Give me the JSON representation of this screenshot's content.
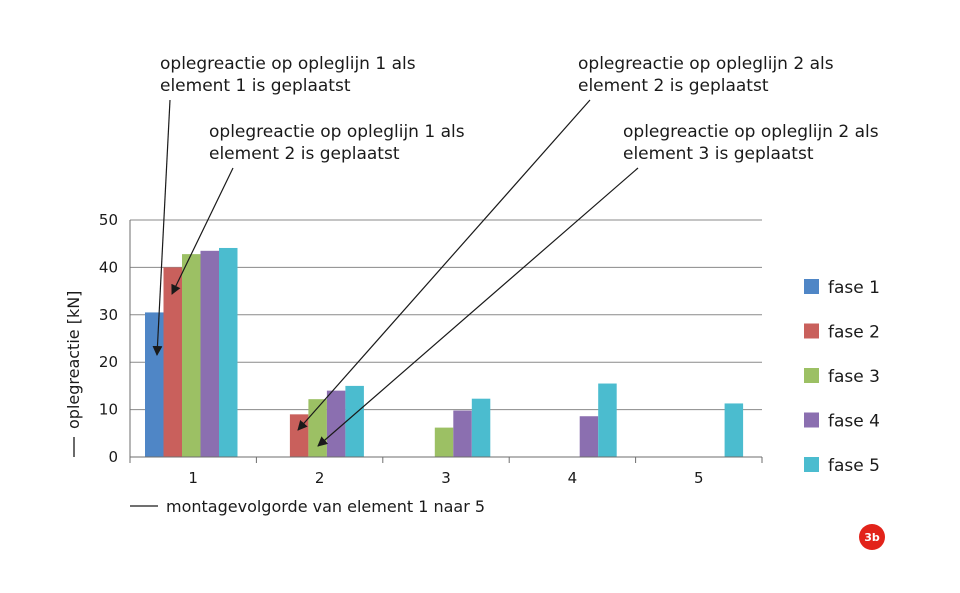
{
  "chart_data": {
    "type": "bar",
    "categories": [
      "1",
      "2",
      "3",
      "4",
      "5"
    ],
    "series": [
      {
        "name": "fase 1",
        "color": "#4f86c6",
        "values": [
          30.5,
          null,
          null,
          null,
          null
        ]
      },
      {
        "name": "fase 2",
        "color": "#c9605c",
        "values": [
          40,
          9,
          null,
          null,
          null
        ]
      },
      {
        "name": "fase 3",
        "color": "#9cc064",
        "values": [
          42.8,
          12.2,
          6.2,
          null,
          null
        ]
      },
      {
        "name": "fase 4",
        "color": "#8b6fb0",
        "values": [
          43.5,
          14,
          9.8,
          8.6,
          null
        ]
      },
      {
        "name": "fase 5",
        "color": "#4bbccf",
        "values": [
          44.1,
          15,
          12.3,
          15.5,
          11.3
        ]
      }
    ],
    "ylim": [
      0,
      50
    ],
    "yticks": [
      0,
      10,
      20,
      30,
      40,
      50
    ],
    "xlabel": "montagevolgorde van element 1 naar 5",
    "ylabel": "oplegreactie [kN]",
    "grid": "horizontal",
    "legend_position": "right",
    "annotations": [
      {
        "lines": [
          "oplegreactie op opleglijn 1 als",
          "element 1 is geplaatst"
        ],
        "category": "1",
        "series": "fase 1"
      },
      {
        "lines": [
          "oplegreactie op opleglijn 1 als",
          "element 2 is geplaatst"
        ],
        "category": "1",
        "series": "fase 2"
      },
      {
        "lines": [
          "oplegreactie op opleglijn 2 als",
          "element 2 is geplaatst"
        ],
        "category": "2",
        "series": "fase 2"
      },
      {
        "lines": [
          "oplegreactie op opleglijn 2 als",
          "element 3 is geplaatst"
        ],
        "category": "2",
        "series": "fase 3"
      }
    ],
    "badge": "3b",
    "badge_color": "#e2231a"
  }
}
